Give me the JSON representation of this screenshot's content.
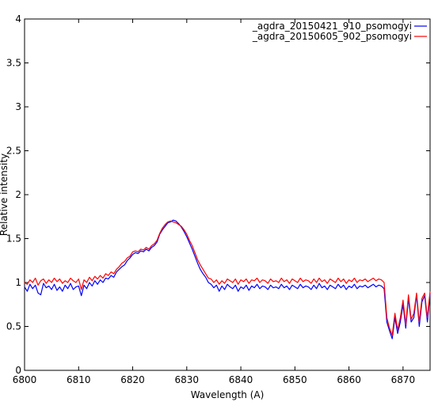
{
  "chart_data": {
    "type": "line",
    "xlabel": "Wavelength (A)",
    "ylabel": "Relative intensity",
    "xlim": [
      6800,
      6875
    ],
    "ylim": [
      0,
      4
    ],
    "x_ticks": [
      "6800",
      "6810",
      "6820",
      "6830",
      "6840",
      "6850",
      "6860",
      "6870"
    ],
    "y_ticks": [
      "0",
      "0.5",
      "1",
      "1.5",
      "2",
      "2.5",
      "3",
      "3.5",
      "4"
    ],
    "grid": false,
    "legend_position": "top-right",
    "series": [
      {
        "name": "_agdra_20150421_910_psomogyi",
        "color": "#0000ff",
        "x": [
          6800.0,
          6800.5,
          6801.0,
          6801.5,
          6802.0,
          6802.5,
          6803.0,
          6803.5,
          6804.0,
          6804.5,
          6805.0,
          6805.5,
          6806.0,
          6806.5,
          6807.0,
          6807.5,
          6808.0,
          6808.5,
          6809.0,
          6809.5,
          6810.0,
          6810.5,
          6811.0,
          6811.5,
          6812.0,
          6812.5,
          6813.0,
          6813.5,
          6814.0,
          6814.5,
          6815.0,
          6815.5,
          6816.0,
          6816.5,
          6817.0,
          6817.5,
          6818.0,
          6818.5,
          6819.0,
          6819.5,
          6820.0,
          6820.5,
          6821.0,
          6821.5,
          6822.0,
          6822.5,
          6823.0,
          6823.5,
          6824.0,
          6824.5,
          6825.0,
          6825.5,
          6826.0,
          6826.5,
          6827.0,
          6827.5,
          6828.0,
          6828.5,
          6829.0,
          6829.5,
          6830.0,
          6830.5,
          6831.0,
          6831.5,
          6832.0,
          6832.5,
          6833.0,
          6833.5,
          6834.0,
          6834.5,
          6835.0,
          6835.5,
          6836.0,
          6836.5,
          6837.0,
          6837.5,
          6838.0,
          6838.5,
          6839.0,
          6839.5,
          6840.0,
          6840.5,
          6841.0,
          6841.5,
          6842.0,
          6842.5,
          6843.0,
          6843.5,
          6844.0,
          6844.5,
          6845.0,
          6845.5,
          6846.0,
          6846.5,
          6847.0,
          6847.5,
          6848.0,
          6848.5,
          6849.0,
          6849.5,
          6850.0,
          6850.5,
          6851.0,
          6851.5,
          6852.0,
          6852.5,
          6853.0,
          6853.5,
          6854.0,
          6854.5,
          6855.0,
          6855.5,
          6856.0,
          6856.5,
          6857.0,
          6857.5,
          6858.0,
          6858.5,
          6859.0,
          6859.5,
          6860.0,
          6860.5,
          6861.0,
          6861.5,
          6862.0,
          6862.5,
          6863.0,
          6863.5,
          6864.0,
          6864.5,
          6865.0,
          6865.5,
          6866.0,
          6866.5,
          6867.0,
          6867.5,
          6868.0,
          6868.5,
          6869.0,
          6869.5,
          6870.0,
          6870.5,
          6871.0,
          6871.5,
          6872.0,
          6872.5,
          6873.0,
          6873.5,
          6874.0,
          6874.5,
          6875.0
        ],
        "y": [
          0.95,
          0.9,
          0.98,
          0.93,
          0.97,
          0.88,
          0.86,
          0.99,
          0.94,
          0.96,
          0.92,
          0.98,
          0.91,
          0.95,
          0.9,
          0.97,
          0.93,
          0.99,
          0.92,
          0.95,
          0.96,
          0.85,
          0.97,
          0.93,
          1.0,
          0.96,
          1.02,
          0.98,
          1.03,
          1.0,
          1.05,
          1.04,
          1.08,
          1.06,
          1.12,
          1.15,
          1.18,
          1.2,
          1.25,
          1.28,
          1.32,
          1.34,
          1.33,
          1.36,
          1.35,
          1.38,
          1.36,
          1.4,
          1.42,
          1.46,
          1.55,
          1.6,
          1.64,
          1.68,
          1.69,
          1.71,
          1.7,
          1.67,
          1.63,
          1.58,
          1.52,
          1.45,
          1.38,
          1.3,
          1.22,
          1.15,
          1.1,
          1.06,
          1.0,
          0.98,
          0.94,
          0.97,
          0.9,
          0.96,
          0.92,
          0.98,
          0.95,
          0.93,
          0.97,
          0.9,
          0.95,
          0.93,
          0.97,
          0.91,
          0.96,
          0.94,
          0.98,
          0.93,
          0.96,
          0.95,
          0.92,
          0.97,
          0.94,
          0.95,
          0.93,
          0.98,
          0.94,
          0.96,
          0.92,
          0.97,
          0.95,
          0.93,
          0.98,
          0.94,
          0.96,
          0.95,
          0.92,
          0.97,
          0.93,
          0.99,
          0.94,
          0.96,
          0.92,
          0.97,
          0.95,
          0.93,
          0.98,
          0.94,
          0.97,
          0.92,
          0.96,
          0.94,
          0.98,
          0.93,
          0.96,
          0.95,
          0.97,
          0.94,
          0.96,
          0.98,
          0.95,
          0.97,
          0.96,
          0.93,
          0.55,
          0.45,
          0.36,
          0.6,
          0.42,
          0.55,
          0.75,
          0.48,
          0.82,
          0.55,
          0.6,
          0.86,
          0.5,
          0.78,
          0.85,
          0.55,
          0.87
        ]
      },
      {
        "name": "_agdra_20150605_902_psomogyi",
        "color": "#ff0000",
        "x": [
          6800.0,
          6800.5,
          6801.0,
          6801.5,
          6802.0,
          6802.5,
          6803.0,
          6803.5,
          6804.0,
          6804.5,
          6805.0,
          6805.5,
          6806.0,
          6806.5,
          6807.0,
          6807.5,
          6808.0,
          6808.5,
          6809.0,
          6809.5,
          6810.0,
          6810.5,
          6811.0,
          6811.5,
          6812.0,
          6812.5,
          6813.0,
          6813.5,
          6814.0,
          6814.5,
          6815.0,
          6815.5,
          6816.0,
          6816.5,
          6817.0,
          6817.5,
          6818.0,
          6818.5,
          6819.0,
          6819.5,
          6820.0,
          6820.5,
          6821.0,
          6821.5,
          6822.0,
          6822.5,
          6823.0,
          6823.5,
          6824.0,
          6824.5,
          6825.0,
          6825.5,
          6826.0,
          6826.5,
          6827.0,
          6827.5,
          6828.0,
          6828.5,
          6829.0,
          6829.5,
          6830.0,
          6830.5,
          6831.0,
          6831.5,
          6832.0,
          6832.5,
          6833.0,
          6833.5,
          6834.0,
          6834.5,
          6835.0,
          6835.5,
          6836.0,
          6836.5,
          6837.0,
          6837.5,
          6838.0,
          6838.5,
          6839.0,
          6839.5,
          6840.0,
          6840.5,
          6841.0,
          6841.5,
          6842.0,
          6842.5,
          6843.0,
          6843.5,
          6844.0,
          6844.5,
          6845.0,
          6845.5,
          6846.0,
          6846.5,
          6847.0,
          6847.5,
          6848.0,
          6848.5,
          6849.0,
          6849.5,
          6850.0,
          6850.5,
          6851.0,
          6851.5,
          6852.0,
          6852.5,
          6853.0,
          6853.5,
          6854.0,
          6854.5,
          6855.0,
          6855.5,
          6856.0,
          6856.5,
          6857.0,
          6857.5,
          6858.0,
          6858.5,
          6859.0,
          6859.5,
          6860.0,
          6860.5,
          6861.0,
          6861.5,
          6862.0,
          6862.5,
          6863.0,
          6863.5,
          6864.0,
          6864.5,
          6865.0,
          6865.5,
          6866.0,
          6866.5,
          6867.0,
          6867.5,
          6868.0,
          6868.5,
          6869.0,
          6869.5,
          6870.0,
          6870.5,
          6871.0,
          6871.5,
          6872.0,
          6872.5,
          6873.0,
          6873.5,
          6874.0,
          6874.5,
          6875.0
        ],
        "y": [
          1.0,
          0.98,
          1.03,
          1.0,
          1.05,
          0.97,
          1.02,
          1.04,
          0.99,
          1.03,
          1.0,
          1.05,
          1.01,
          1.04,
          0.99,
          1.02,
          1.0,
          1.05,
          1.02,
          1.0,
          1.04,
          0.92,
          1.03,
          1.0,
          1.06,
          1.02,
          1.07,
          1.04,
          1.08,
          1.05,
          1.1,
          1.08,
          1.12,
          1.1,
          1.15,
          1.18,
          1.22,
          1.24,
          1.28,
          1.3,
          1.35,
          1.36,
          1.35,
          1.38,
          1.37,
          1.4,
          1.38,
          1.42,
          1.44,
          1.48,
          1.56,
          1.62,
          1.66,
          1.69,
          1.7,
          1.69,
          1.68,
          1.66,
          1.64,
          1.6,
          1.55,
          1.48,
          1.42,
          1.34,
          1.26,
          1.2,
          1.15,
          1.1,
          1.05,
          1.04,
          1.0,
          1.03,
          0.98,
          1.02,
          0.99,
          1.04,
          1.02,
          1.0,
          1.04,
          0.98,
          1.03,
          1.01,
          1.04,
          0.99,
          1.03,
          1.02,
          1.05,
          1.0,
          1.03,
          1.02,
          0.99,
          1.04,
          1.01,
          1.02,
          1.0,
          1.05,
          1.01,
          1.03,
          0.99,
          1.04,
          1.02,
          1.0,
          1.05,
          1.01,
          1.03,
          1.02,
          0.99,
          1.04,
          1.0,
          1.05,
          1.01,
          1.03,
          0.99,
          1.04,
          1.02,
          1.0,
          1.05,
          1.01,
          1.04,
          0.99,
          1.03,
          1.01,
          1.05,
          1.0,
          1.03,
          1.02,
          1.04,
          1.01,
          1.03,
          1.05,
          1.02,
          1.04,
          1.03,
          1.0,
          0.6,
          0.48,
          0.4,
          0.65,
          0.46,
          0.6,
          0.8,
          0.52,
          0.86,
          0.58,
          0.65,
          0.88,
          0.55,
          0.82,
          0.88,
          0.6,
          0.9
        ]
      }
    ]
  }
}
